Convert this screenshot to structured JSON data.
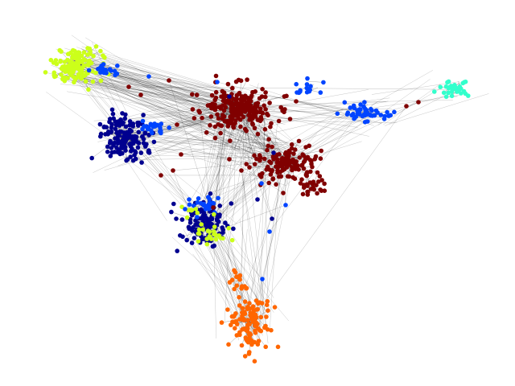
{
  "graph": {
    "communities": [
      {
        "name": "community-lime",
        "color": "#ccff1a"
      },
      {
        "name": "community-navy",
        "color": "#00008f"
      },
      {
        "name": "community-blue",
        "color": "#0044ff"
      },
      {
        "name": "community-maroon",
        "color": "#800000"
      },
      {
        "name": "community-cyan",
        "color": "#33ffcc"
      },
      {
        "name": "community-orange",
        "color": "#ff6600"
      }
    ]
  }
}
